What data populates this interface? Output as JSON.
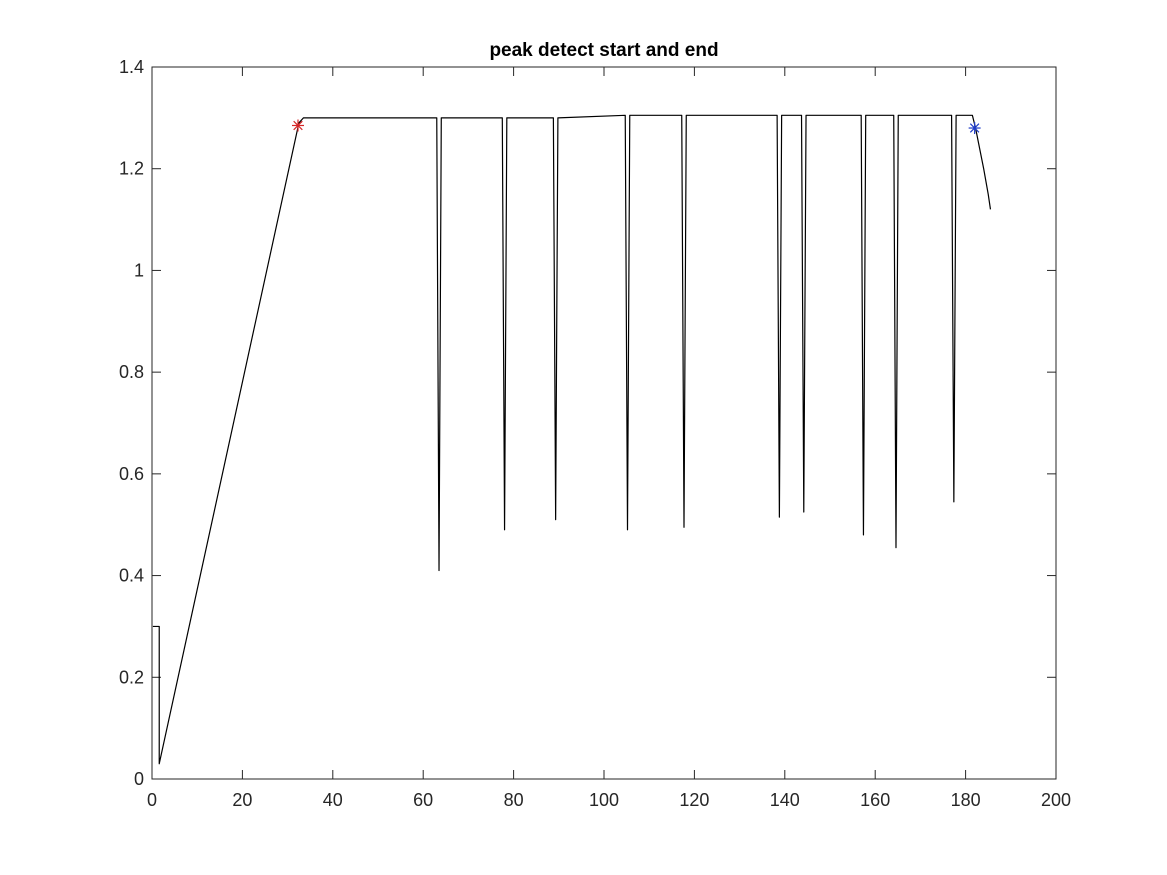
{
  "chart_data": {
    "type": "line",
    "title": "peak detect start and end",
    "xlabel": "",
    "ylabel": "",
    "xlim": [
      0,
      200
    ],
    "ylim": [
      0,
      1.4
    ],
    "x_ticks": [
      "0",
      "20",
      "40",
      "60",
      "80",
      "100",
      "120",
      "140",
      "160",
      "180",
      "200"
    ],
    "y_ticks": [
      "0",
      "0.2",
      "0.4",
      "0.6",
      "0.8",
      "1",
      "1.2",
      "1.4"
    ],
    "grid": false,
    "legend": "none",
    "colors": {
      "line": "#000000",
      "start_marker": "#d62728",
      "end_marker": "#1f3cc7",
      "axes": "#262626"
    },
    "series": [
      {
        "points": [
          [
            0.2,
            0.3
          ],
          [
            1.6,
            0.3
          ],
          [
            1.6,
            0.03
          ],
          [
            32.5,
            1.29
          ],
          [
            33.5,
            1.3
          ],
          [
            63.0,
            1.3
          ],
          [
            63.5,
            0.41
          ],
          [
            64.0,
            1.3
          ],
          [
            77.5,
            1.3
          ],
          [
            78.0,
            0.49
          ],
          [
            78.5,
            1.3
          ],
          [
            88.8,
            1.3
          ],
          [
            89.3,
            0.51
          ],
          [
            89.8,
            1.3
          ],
          [
            104.7,
            1.305
          ],
          [
            105.2,
            0.49
          ],
          [
            105.7,
            1.305
          ],
          [
            117.2,
            1.305
          ],
          [
            117.7,
            0.495
          ],
          [
            118.2,
            1.305
          ],
          [
            138.3,
            1.305
          ],
          [
            138.8,
            0.515
          ],
          [
            139.3,
            1.305
          ],
          [
            143.7,
            1.305
          ],
          [
            144.2,
            0.525
          ],
          [
            144.7,
            1.305
          ],
          [
            156.9,
            1.305
          ],
          [
            157.4,
            0.48
          ],
          [
            157.9,
            1.305
          ],
          [
            164.1,
            1.305
          ],
          [
            164.6,
            0.455
          ],
          [
            165.1,
            1.305
          ],
          [
            176.9,
            1.305
          ],
          [
            177.4,
            0.545
          ],
          [
            177.9,
            1.305
          ],
          [
            181.5,
            1.305
          ],
          [
            182.2,
            1.28
          ],
          [
            184.0,
            1.2
          ],
          [
            185.0,
            1.15
          ],
          [
            185.5,
            1.12
          ]
        ]
      }
    ],
    "markers": [
      {
        "role": "start",
        "x": 32.3,
        "y": 1.285,
        "symbol": "*"
      },
      {
        "role": "end",
        "x": 182.0,
        "y": 1.28,
        "symbol": "*"
      }
    ]
  }
}
